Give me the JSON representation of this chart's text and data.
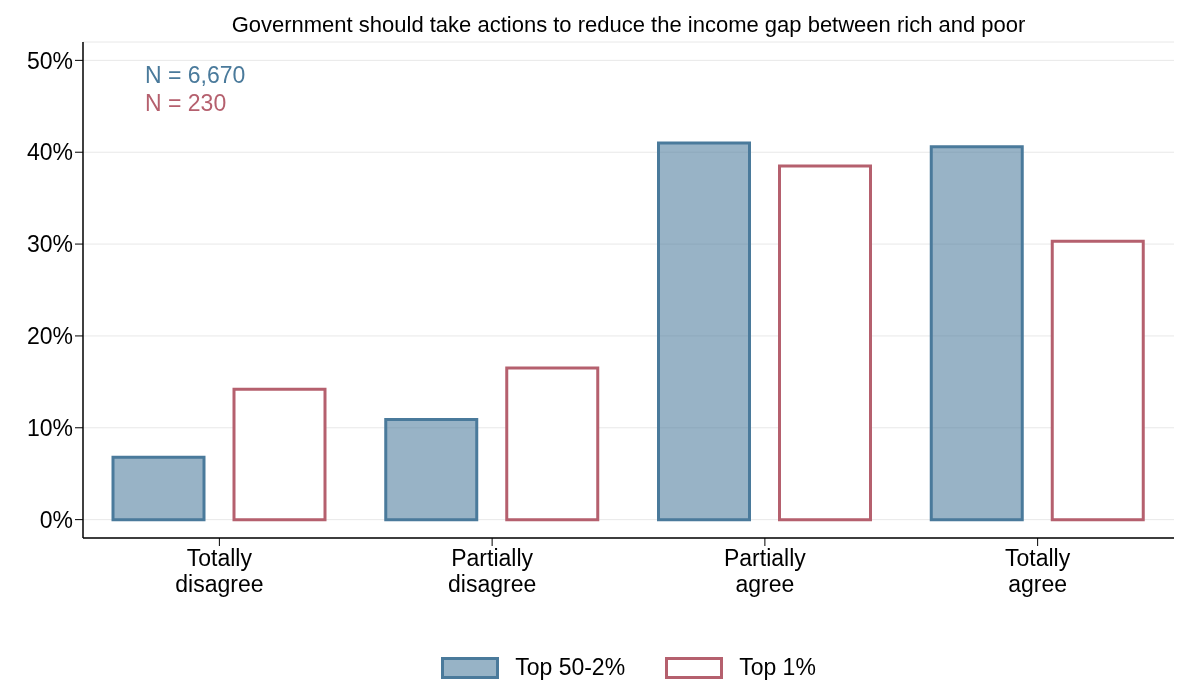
{
  "chart_data": {
    "type": "bar",
    "title": "Government should take actions to reduce the income gap between rich and poor",
    "categories": [
      "Totally disagree",
      "Partially disagree",
      "Partially agree",
      "Totally agree"
    ],
    "series": [
      {
        "name": "Top 50-2%",
        "color": "#4a7a9b",
        "values": [
          6.8,
          10.9,
          41.0,
          40.6
        ]
      },
      {
        "name": "Top 1%",
        "color": "#b5606e",
        "values": [
          14.2,
          16.5,
          38.5,
          30.3
        ]
      }
    ],
    "ylim": [
      -2,
      52
    ],
    "yticks": [
      {
        "value": 0,
        "label": "0%"
      },
      {
        "value": 10,
        "label": "10%"
      },
      {
        "value": 20,
        "label": "20%"
      },
      {
        "value": 30,
        "label": "30%"
      },
      {
        "value": 40,
        "label": "40%"
      },
      {
        "value": 50,
        "label": "50%"
      }
    ],
    "annotations": [
      "N = 6,670",
      "N = 230"
    ],
    "grid": "y",
    "legend": "bottom"
  }
}
